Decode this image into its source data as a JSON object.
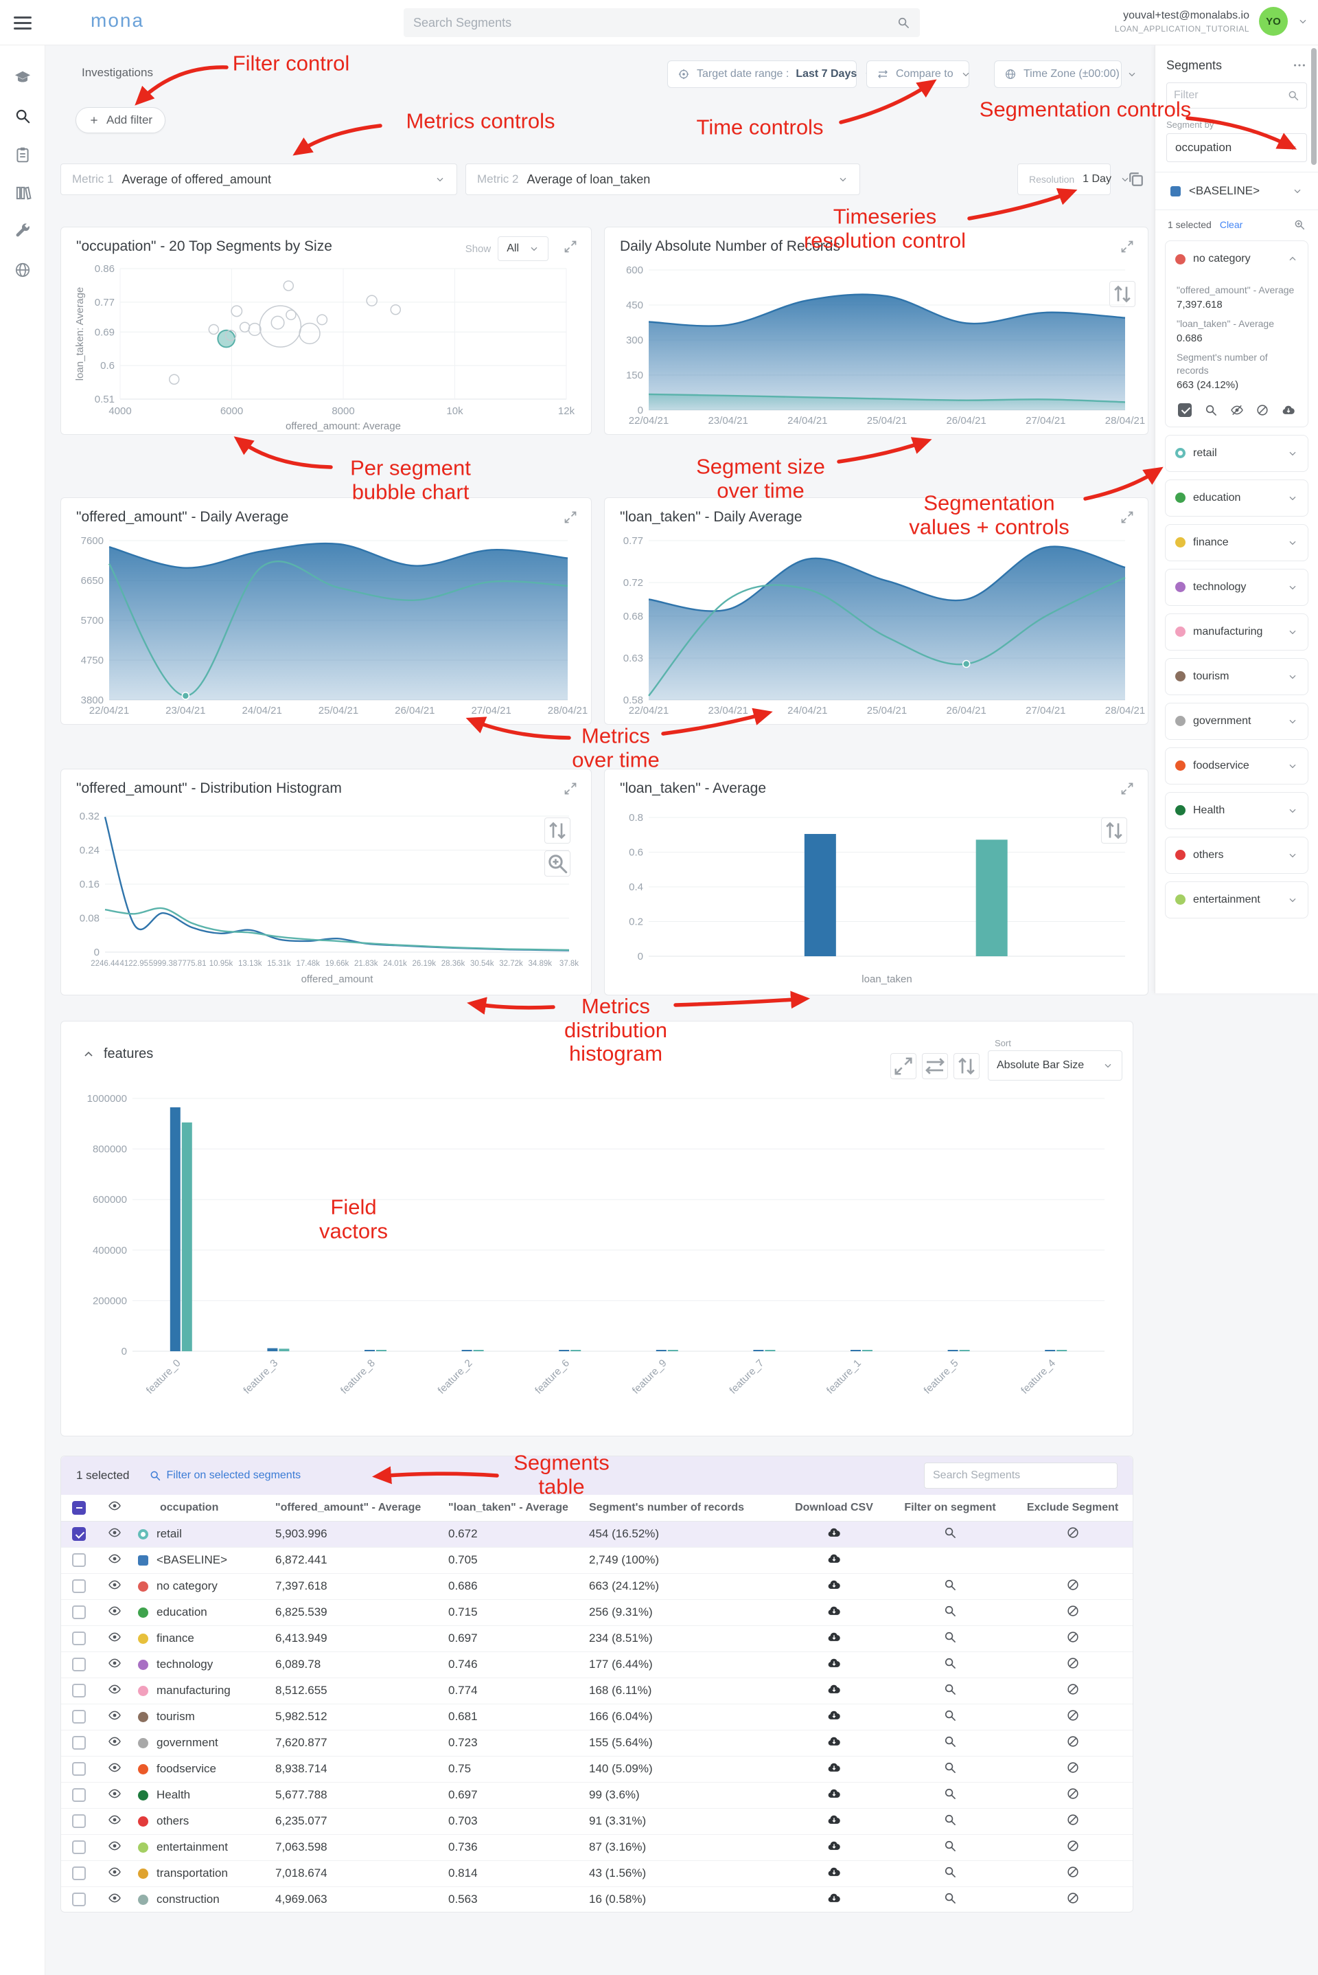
{
  "topbar": {
    "logo": "mona",
    "search_placeholder": "Search Segments",
    "user_email": "youval+test@monalabs.io",
    "workspace": "LOAN_APPLICATION_TUTORIAL",
    "avatar_initials": "YO"
  },
  "left_nav": {
    "items": [
      "models-icon",
      "investigations-icon",
      "reports-icon",
      "knowledge-icon",
      "settings-icon",
      "network-icon"
    ]
  },
  "header": {
    "breadcrumb": "Investigations",
    "add_filter": "Add filter",
    "target_label": "Target date range :",
    "target_value": "Last 7 Days",
    "compare_label": "Compare to",
    "timezone_label": "Time Zone (±00:00)"
  },
  "metrics_bar": {
    "metric1_label": "Metric 1",
    "metric1_value": "Average of offered_amount",
    "metric2_label": "Metric 2",
    "metric2_value": "Average of loan_taken",
    "resolution_label": "Resolution",
    "resolution_value": "1 Day"
  },
  "annotations": [
    "Filter control",
    "Metrics controls",
    "Time controls",
    "Segmentation controls",
    "Timeseries resolution control",
    "Per segment bubble chart",
    "Segment size over time",
    "Segmentation values + controls",
    "Metrics over time",
    "Metrics distribution histogram",
    "Field vactors",
    "Segments table"
  ],
  "colors": {
    "blue": "#2f74ab",
    "teal": "#5ab3ab",
    "annotation": "#e8271b",
    "purple": "#4f46ba"
  },
  "charts": {
    "bubble": {
      "title": "\"occupation\" - 20 Top Segments by Size",
      "show_label": "Show",
      "show_value": "All",
      "chart_data": {
        "type": "scatter",
        "xlabel": "offered_amount: Average",
        "ylabel": "loan_taken: Average",
        "xlim": [
          4000,
          12000
        ],
        "ylim": [
          0.51,
          0.86
        ],
        "xticks": [
          {
            "v": 4000,
            "l": "4000"
          },
          {
            "v": 6000,
            "l": "6000"
          },
          {
            "v": 8000,
            "l": "8000"
          },
          {
            "v": 10000,
            "l": "10k"
          },
          {
            "v": 12000,
            "l": "12k"
          }
        ],
        "yticks": [
          {
            "v": 0.51,
            "l": "0.51"
          },
          {
            "v": 0.6,
            "l": "0.6"
          },
          {
            "v": 0.69,
            "l": "0.69"
          },
          {
            "v": 0.77,
            "l": "0.77"
          },
          {
            "v": 0.86,
            "l": "0.86"
          }
        ],
        "points": [
          {
            "name": "retail",
            "x": 5903.996,
            "y": 0.672,
            "n": 454,
            "highlight": true
          },
          {
            "name": "<BASELINE>",
            "x": 6872.441,
            "y": 0.705,
            "n": 2749
          },
          {
            "name": "no category",
            "x": 7397.618,
            "y": 0.686,
            "n": 663
          },
          {
            "name": "education",
            "x": 6825.539,
            "y": 0.715,
            "n": 256
          },
          {
            "name": "finance",
            "x": 6413.949,
            "y": 0.697,
            "n": 234
          },
          {
            "name": "technology",
            "x": 6089.78,
            "y": 0.746,
            "n": 177
          },
          {
            "name": "manufacturing",
            "x": 8512.655,
            "y": 0.774,
            "n": 168
          },
          {
            "name": "tourism",
            "x": 5982.512,
            "y": 0.681,
            "n": 166
          },
          {
            "name": "government",
            "x": 7620.877,
            "y": 0.723,
            "n": 155
          },
          {
            "name": "foodservice",
            "x": 8938.714,
            "y": 0.75,
            "n": 140
          },
          {
            "name": "Health",
            "x": 5677.788,
            "y": 0.697,
            "n": 99
          },
          {
            "name": "others",
            "x": 6235.077,
            "y": 0.703,
            "n": 91
          },
          {
            "name": "entertainment",
            "x": 7063.598,
            "y": 0.736,
            "n": 87
          },
          {
            "name": "transportation",
            "x": 7018.674,
            "y": 0.814,
            "n": 43
          },
          {
            "name": "construction",
            "x": 4969.063,
            "y": 0.563,
            "n": 16
          }
        ]
      }
    },
    "records": {
      "title": "Daily Absolute Number of Records",
      "chart_data": {
        "type": "area",
        "x": [
          "22/04/21",
          "23/04/21",
          "24/04/21",
          "25/04/21",
          "26/04/21",
          "27/04/21",
          "28/04/21"
        ],
        "ylim": [
          0,
          600
        ],
        "yticks": [
          {
            "v": 600,
            "l": "600"
          },
          {
            "v": 450,
            "l": "450"
          },
          {
            "v": 300,
            "l": "300"
          },
          {
            "v": 150,
            "l": "150"
          },
          {
            "v": 0,
            "l": "0"
          }
        ],
        "series": [
          {
            "name": "<BASELINE>",
            "color": "blue",
            "area": true,
            "values": [
              378,
              365,
              470,
              488,
              372,
              418,
              395
            ]
          },
          {
            "name": "retail",
            "color": "teal",
            "area": true,
            "values": [
              68,
              62,
              55,
              48,
              42,
              46,
              34
            ]
          }
        ]
      }
    },
    "offered": {
      "title": "\"offered_amount\" - Daily Average",
      "chart_data": {
        "type": "area",
        "x": [
          "22/04/21",
          "23/04/21",
          "24/04/21",
          "25/04/21",
          "26/04/21",
          "27/04/21",
          "28/04/21"
        ],
        "ylim": [
          3800,
          7600
        ],
        "yticks": [
          {
            "v": 7600,
            "l": "7600"
          },
          {
            "v": 6650,
            "l": "6650"
          },
          {
            "v": 5700,
            "l": "5700"
          },
          {
            "v": 4750,
            "l": "4750"
          },
          {
            "v": 3800,
            "l": "3800"
          }
        ],
        "series": [
          {
            "name": "<BASELINE>",
            "color": "blue",
            "area": true,
            "values": [
              7450,
              6950,
              7350,
              7520,
              7000,
              7380,
              7180
            ]
          },
          {
            "name": "retail",
            "color": "teal",
            "values": [
              7050,
              3900,
              6980,
              6480,
              6180,
              6620,
              6520
            ],
            "dot": 1
          }
        ]
      }
    },
    "loan": {
      "title": "\"loan_taken\" - Daily Average",
      "chart_data": {
        "type": "area",
        "x": [
          "22/04/21",
          "23/04/21",
          "24/04/21",
          "25/04/21",
          "26/04/21",
          "27/04/21",
          "28/04/21"
        ],
        "ylim": [
          0.58,
          0.77
        ],
        "yticks": [
          {
            "v": 0.77,
            "l": "0.77"
          },
          {
            "v": 0.72,
            "l": "0.72"
          },
          {
            "v": 0.68,
            "l": "0.68"
          },
          {
            "v": 0.63,
            "l": "0.63"
          },
          {
            "v": 0.58,
            "l": "0.58"
          }
        ],
        "series": [
          {
            "name": "<BASELINE>",
            "color": "blue",
            "area": true,
            "values": [
              0.7,
              0.688,
              0.748,
              0.722,
              0.7,
              0.762,
              0.738
            ]
          },
          {
            "name": "retail",
            "color": "teal",
            "values": [
              0.585,
              0.7,
              0.712,
              0.655,
              0.623,
              0.68,
              0.726
            ],
            "dot": 4
          }
        ]
      }
    },
    "histogram": {
      "title": "\"offered_amount\" - Distribution Histogram",
      "chart_data": {
        "type": "line",
        "xlabel": "offered_amount",
        "small": true,
        "x": [
          "2246.44",
          "4122.95",
          "5999.38",
          "7775.81",
          "10.95k",
          "13.13k",
          "15.31k",
          "17.48k",
          "19.66k",
          "21.83k",
          "24.01k",
          "26.19k",
          "28.36k",
          "30.54k",
          "32.72k",
          "34.89k",
          "37.8k"
        ],
        "ylim": [
          0,
          0.32
        ],
        "yticks": [
          {
            "v": 0.32,
            "l": "0.32"
          },
          {
            "v": 0.24,
            "l": "0.24"
          },
          {
            "v": 0.16,
            "l": "0.16"
          },
          {
            "v": 0.08,
            "l": "0.08"
          },
          {
            "v": 0,
            "l": "0"
          }
        ],
        "series": [
          {
            "name": "<BASELINE>",
            "color": "blue",
            "values": [
              0.318,
              0.065,
              0.092,
              0.058,
              0.044,
              0.052,
              0.03,
              0.026,
              0.032,
              0.02,
              0.016,
              0.013,
              0.01,
              0.008,
              0.006,
              0.005,
              0.004
            ]
          },
          {
            "name": "retail",
            "color": "teal",
            "values": [
              0.1,
              0.09,
              0.103,
              0.068,
              0.05,
              0.046,
              0.036,
              0.03,
              0.026,
              0.021,
              0.017,
              0.014,
              0.011,
              0.009,
              0.007,
              0.006,
              0.005
            ]
          }
        ]
      }
    },
    "loan_avg": {
      "title": "\"loan_taken\" - Average",
      "chart_data": {
        "type": "bar",
        "xlabel": "loan_taken",
        "ylim": [
          0,
          0.8
        ],
        "yticks": [
          {
            "v": 0.8,
            "l": "0.8"
          },
          {
            "v": 0.6,
            "l": "0.6"
          },
          {
            "v": 0.4,
            "l": "0.4"
          },
          {
            "v": 0.2,
            "l": "0.2"
          },
          {
            "v": 0,
            "l": "0"
          }
        ],
        "bars": [
          {
            "name": "<BASELINE>",
            "value": 0.705,
            "color": "blue"
          },
          {
            "name": "retail",
            "value": 0.672,
            "color": "teal"
          }
        ]
      }
    },
    "features": {
      "title": "features",
      "sort_label": "Sort",
      "sort_value": "Absolute Bar Size",
      "chart_data": {
        "type": "grouped_bar",
        "categories": [
          "feature_0",
          "feature_3",
          "feature_8",
          "feature_2",
          "feature_6",
          "feature_9",
          "feature_7",
          "feature_1",
          "feature_5",
          "feature_4"
        ],
        "ylim": [
          0,
          1000000
        ],
        "yticks": [
          {
            "v": 1000000,
            "l": "1000000"
          },
          {
            "v": 800000,
            "l": "800000"
          },
          {
            "v": 600000,
            "l": "600000"
          },
          {
            "v": 400000,
            "l": "400000"
          },
          {
            "v": 200000,
            "l": "200000"
          },
          {
            "v": 0,
            "l": "0"
          }
        ],
        "series": [
          {
            "name": "<BASELINE>",
            "color": "blue",
            "values": [
              965000,
              12000,
              5000,
              3000,
              2200,
              1700,
              1300,
              1000,
              800,
              600
            ]
          },
          {
            "name": "retail",
            "color": "teal",
            "values": [
              905000,
              10000,
              4200,
              2600,
              1900,
              1400,
              1100,
              900,
              700,
              500
            ]
          }
        ]
      }
    }
  },
  "right_panel": {
    "title": "Segments",
    "filter_placeholder": "Filter",
    "segment_by_label": "Segment by",
    "segment_by_value": "occupation",
    "baseline_label": "<BASELINE>",
    "selected_count": "1 selected",
    "clear_label": "Clear",
    "expanded": {
      "metric1_label": "\"offered_amount\" - Average",
      "metric1_value": "7,397.618",
      "metric2_label": "\"loan_taken\" - Average",
      "metric2_value": "0.686",
      "records_label": "Segment's number of records",
      "records_value": "663 (24.12%)"
    },
    "segments": [
      {
        "name": "no category",
        "color": "#e05c55",
        "expanded": true
      },
      {
        "name": "retail",
        "color": "#63bdb8",
        "ring": true
      },
      {
        "name": "education",
        "color": "#3fa34d"
      },
      {
        "name": "finance",
        "color": "#e7c03c"
      },
      {
        "name": "technology",
        "color": "#a86fc3"
      },
      {
        "name": "manufacturing",
        "color": "#f2a0bd"
      },
      {
        "name": "tourism",
        "color": "#8a6f5e"
      },
      {
        "name": "government",
        "color": "#a8a8a8"
      },
      {
        "name": "foodservice",
        "color": "#eb5a28"
      },
      {
        "name": "Health",
        "color": "#1d7a3d"
      },
      {
        "name": "others",
        "color": "#e23b3b"
      },
      {
        "name": "entertainment",
        "color": "#a4cf63"
      }
    ]
  },
  "table": {
    "toolbar": {
      "selected": "1 selected",
      "filter_action": "Filter on selected segments",
      "search_placeholder": "Search Segments"
    },
    "headers": [
      "occupation",
      "\"offered_amount\" - Average",
      "\"loan_taken\" - Average",
      "Segment's number of records",
      "Download CSV",
      "Filter on segment",
      "Exclude Segment"
    ],
    "rows": [
      {
        "name": "retail",
        "color": "#63bdb8",
        "ring": true,
        "offered": "5,903.996",
        "loan": "0.672",
        "records": "454 (16.52%)",
        "selected": true
      },
      {
        "name": "<BASELINE>",
        "color": "#3d7ab8",
        "baseline": true,
        "offered": "6,872.441",
        "loan": "0.705",
        "records": "2,749 (100%)"
      },
      {
        "name": "no category",
        "color": "#e05c55",
        "offered": "7,397.618",
        "loan": "0.686",
        "records": "663 (24.12%)"
      },
      {
        "name": "education",
        "color": "#3fa34d",
        "offered": "6,825.539",
        "loan": "0.715",
        "records": "256 (9.31%)"
      },
      {
        "name": "finance",
        "color": "#e7c03c",
        "offered": "6,413.949",
        "loan": "0.697",
        "records": "234 (8.51%)"
      },
      {
        "name": "technology",
        "color": "#a86fc3",
        "offered": "6,089.78",
        "loan": "0.746",
        "records": "177 (6.44%)"
      },
      {
        "name": "manufacturing",
        "color": "#f2a0bd",
        "offered": "8,512.655",
        "loan": "0.774",
        "records": "168 (6.11%)"
      },
      {
        "name": "tourism",
        "color": "#8a6f5e",
        "offered": "5,982.512",
        "loan": "0.681",
        "records": "166 (6.04%)"
      },
      {
        "name": "government",
        "color": "#a8a8a8",
        "offered": "7,620.877",
        "loan": "0.723",
        "records": "155 (5.64%)"
      },
      {
        "name": "foodservice",
        "color": "#eb5a28",
        "offered": "8,938.714",
        "loan": "0.75",
        "records": "140 (5.09%)"
      },
      {
        "name": "Health",
        "color": "#1d7a3d",
        "offered": "5,677.788",
        "loan": "0.697",
        "records": "99 (3.6%)"
      },
      {
        "name": "others",
        "color": "#e23b3b",
        "offered": "6,235.077",
        "loan": "0.703",
        "records": "91 (3.31%)"
      },
      {
        "name": "entertainment",
        "color": "#a4cf63",
        "offered": "7,063.598",
        "loan": "0.736",
        "records": "87 (3.16%)"
      },
      {
        "name": "transportation",
        "color": "#dfa32f",
        "offered": "7,018.674",
        "loan": "0.814",
        "records": "43 (1.56%)"
      },
      {
        "name": "construction",
        "color": "#93afa9",
        "offered": "4,969.063",
        "loan": "0.563",
        "records": "16 (0.58%)"
      }
    ]
  }
}
